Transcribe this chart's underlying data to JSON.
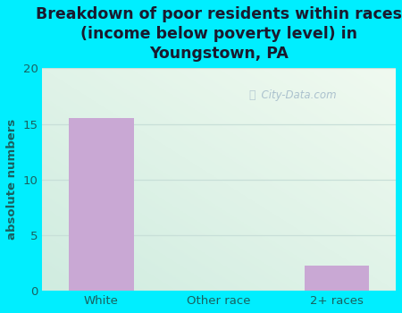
{
  "title": "Breakdown of poor residents within races\n(income below poverty level) in\nYoungstown, PA",
  "categories": [
    "White",
    "Other race",
    "2+ races"
  ],
  "values": [
    15.5,
    0,
    2.3
  ],
  "bar_color": "#c9a8d4",
  "ylabel": "absolute numbers",
  "ylim": [
    0,
    20
  ],
  "yticks": [
    0,
    5,
    10,
    15,
    20
  ],
  "title_fontsize": 12.5,
  "tick_fontsize": 9.5,
  "ylabel_fontsize": 9.5,
  "background_outer": "#00eeff",
  "bg_top_right": "#f0faf0",
  "bg_bottom_left": "#d8f0e8",
  "text_color": "#1a6060",
  "grid_color": "#c8dfd8",
  "watermark": "  City-Data.com",
  "watermark_color": "#a0b8c8",
  "bar_width": 0.55
}
